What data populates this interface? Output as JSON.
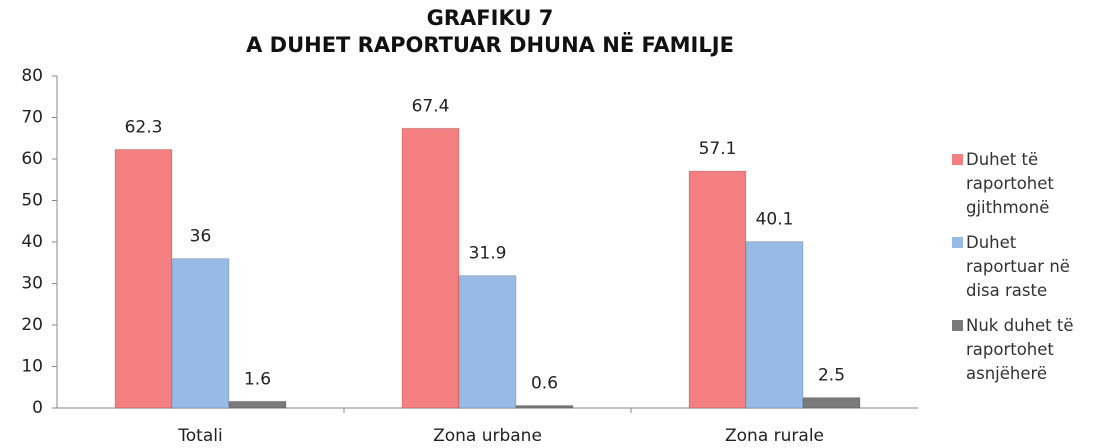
{
  "chart_data": {
    "type": "bar",
    "title": "GRAFIKU 7",
    "subtitle": "A DUHET RAPORTUAR DHUNA NË FAMILJE",
    "categories": [
      "Totali",
      "Zona urbane",
      "Zona rurale"
    ],
    "series": [
      {
        "name": "Duhet të raportohet gjithmonë",
        "color": "#f47f80",
        "values": [
          62.3,
          67.4,
          57.1
        ]
      },
      {
        "name": "Duhet raportuar në disa raste",
        "color": "#97bbe4",
        "values": [
          36,
          31.9,
          40.1
        ]
      },
      {
        "name": "Nuk duhet të raportohet asnjëherë",
        "color": "#7a7a7a",
        "values": [
          1.6,
          0.6,
          2.5
        ]
      }
    ],
    "ylim": [
      0,
      80
    ],
    "yticks": [
      0,
      10,
      20,
      30,
      40,
      50,
      60,
      70,
      80
    ],
    "grid": false,
    "legend": "right"
  }
}
